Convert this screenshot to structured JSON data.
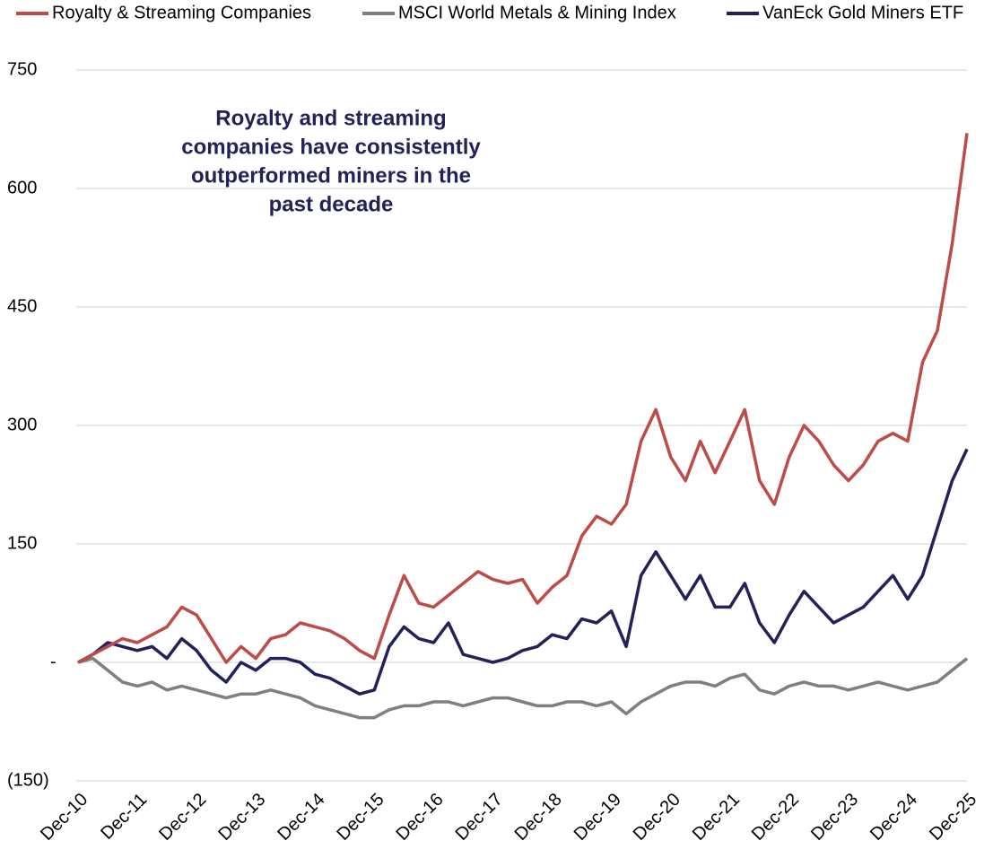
{
  "chart_data": {
    "type": "line",
    "x": [
      "Dec-10",
      "Mar-11",
      "Jun-11",
      "Sep-11",
      "Dec-11",
      "Mar-12",
      "Jun-12",
      "Sep-12",
      "Dec-12",
      "Mar-13",
      "Jun-13",
      "Sep-13",
      "Dec-13",
      "Mar-14",
      "Jun-14",
      "Sep-14",
      "Dec-14",
      "Mar-15",
      "Jun-15",
      "Sep-15",
      "Dec-15",
      "Mar-16",
      "Jun-16",
      "Sep-16",
      "Dec-16",
      "Mar-17",
      "Jun-17",
      "Sep-17",
      "Dec-17",
      "Mar-18",
      "Jun-18",
      "Sep-18",
      "Dec-18",
      "Mar-19",
      "Jun-19",
      "Sep-19",
      "Dec-19",
      "Mar-20",
      "Jun-20",
      "Sep-20",
      "Dec-20",
      "Mar-21",
      "Jun-21",
      "Sep-21",
      "Dec-21",
      "Mar-22",
      "Jun-22",
      "Sep-22",
      "Dec-22",
      "Mar-23",
      "Jun-23",
      "Sep-23",
      "Dec-23",
      "Mar-24",
      "Jun-24",
      "Sep-24",
      "Dec-24",
      "Mar-25",
      "Jun-25",
      "Sep-25",
      "Dec-25"
    ],
    "xticks": [
      "Dec-10",
      "Dec-11",
      "Dec-12",
      "Dec-13",
      "Dec-14",
      "Dec-15",
      "Dec-16",
      "Dec-17",
      "Dec-18",
      "Dec-19",
      "Dec-20",
      "Dec-21",
      "Dec-22",
      "Dec-23",
      "Dec-24",
      "Dec-25"
    ],
    "series": [
      {
        "name": "Royalty & Streaming Companies",
        "color": "#be4b48",
        "values": [
          0,
          10,
          20,
          30,
          25,
          35,
          45,
          70,
          60,
          30,
          0,
          20,
          5,
          30,
          35,
          50,
          45,
          40,
          30,
          15,
          5,
          60,
          110,
          75,
          70,
          85,
          100,
          115,
          105,
          100,
          105,
          75,
          95,
          110,
          160,
          185,
          175,
          200,
          280,
          320,
          260,
          230,
          280,
          240,
          280,
          320,
          230,
          200,
          260,
          300,
          280,
          250,
          230,
          250,
          280,
          290,
          280,
          380,
          420,
          530,
          670
        ]
      },
      {
        "name": "MSCI World Metals & Mining Index",
        "color": "#7f7f7f",
        "values": [
          0,
          5,
          -10,
          -25,
          -30,
          -25,
          -35,
          -30,
          -35,
          -40,
          -45,
          -40,
          -40,
          -35,
          -40,
          -45,
          -55,
          -60,
          -65,
          -70,
          -70,
          -60,
          -55,
          -55,
          -50,
          -50,
          -55,
          -50,
          -45,
          -45,
          -50,
          -55,
          -55,
          -50,
          -50,
          -55,
          -50,
          -65,
          -50,
          -40,
          -30,
          -25,
          -25,
          -30,
          -20,
          -15,
          -35,
          -40,
          -30,
          -25,
          -30,
          -30,
          -35,
          -30,
          -25,
          -30,
          -35,
          -30,
          -25,
          -10,
          5
        ]
      },
      {
        "name": "VanEck Gold Miners ETF",
        "color": "#23215a",
        "values": [
          0,
          10,
          25,
          20,
          15,
          20,
          5,
          30,
          15,
          -10,
          -25,
          0,
          -10,
          5,
          5,
          0,
          -15,
          -20,
          -30,
          -40,
          -35,
          20,
          45,
          30,
          25,
          50,
          10,
          5,
          0,
          5,
          15,
          20,
          35,
          30,
          55,
          50,
          65,
          20,
          110,
          140,
          110,
          80,
          110,
          70,
          70,
          100,
          50,
          25,
          60,
          90,
          70,
          50,
          60,
          70,
          90,
          110,
          80,
          110,
          170,
          230,
          270
        ]
      }
    ],
    "ylim": [
      -150,
      750
    ],
    "yticks": [
      {
        "value": -150,
        "label": "(150)"
      },
      {
        "value": 0,
        "label": "-"
      },
      150,
      300,
      450,
      600,
      750
    ],
    "grid": true,
    "legend": "top",
    "annotation": [
      "Royalty and streaming",
      "companies have consistently",
      "outperformed miners in the",
      "past decade"
    ]
  }
}
